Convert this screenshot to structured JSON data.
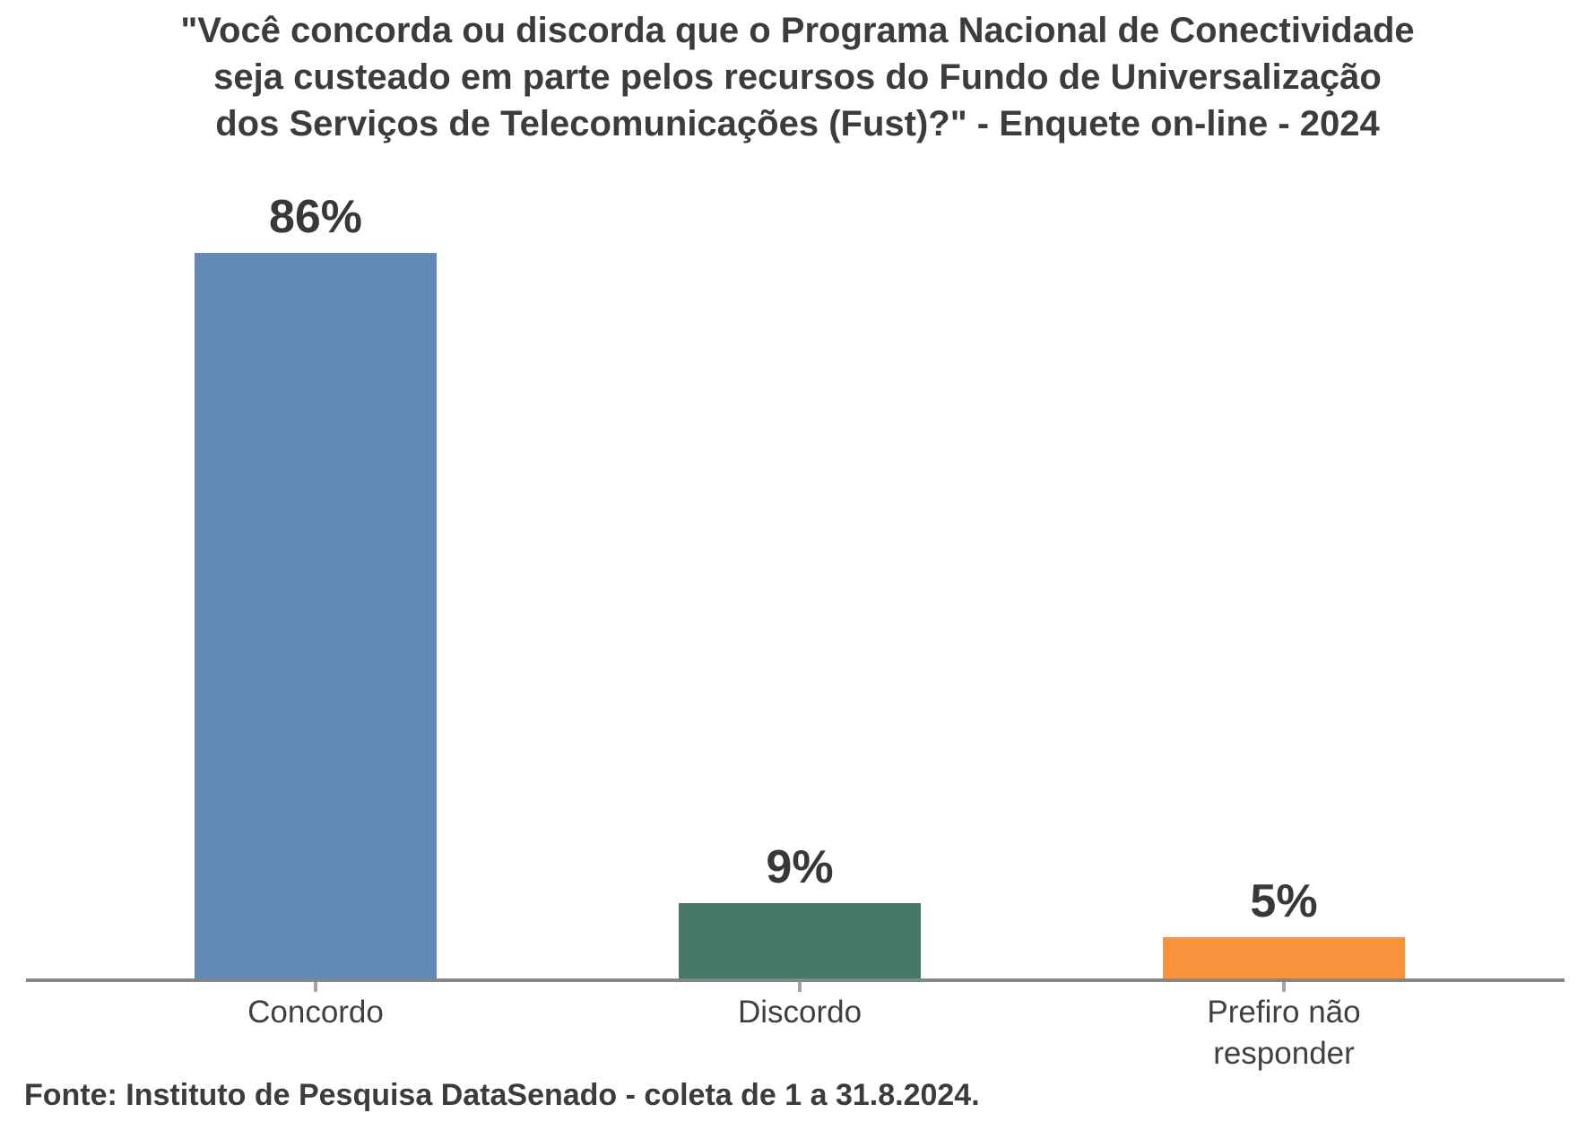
{
  "chart_data": {
    "type": "bar",
    "title": "\"Você concorda ou discorda que o Programa Nacional de Conectividade seja custeado em parte pelos recursos do Fundo de Universalização dos Serviços de Telecomunicações (Fust)?\" - Enquete on-line - 2024",
    "title_lines": [
      "\"Você concorda ou discorda que o Programa Nacional de Conectividade",
      "seja custeado em parte pelos recursos do Fundo de Universalização",
      "dos Serviços de Telecomunicações (Fust)?\" - Enquete on-line - 2024"
    ],
    "categories": [
      "Concordo",
      "Discordo",
      "Prefiro não responder"
    ],
    "values": [
      86,
      9,
      5
    ],
    "value_labels": [
      "86%",
      "9%",
      "5%"
    ],
    "bar_colors": [
      "#6289B8",
      "#47786A",
      "#F9943D"
    ],
    "xlabel": "",
    "ylabel": "",
    "ylim": [
      0,
      92
    ],
    "grid": false,
    "legend": false,
    "axis_color": "#868686",
    "text_color": "#3C3C3C",
    "source": "Fonte: Instituto de Pesquisa DataSenado - coleta de 1 a 31.8.2024."
  }
}
